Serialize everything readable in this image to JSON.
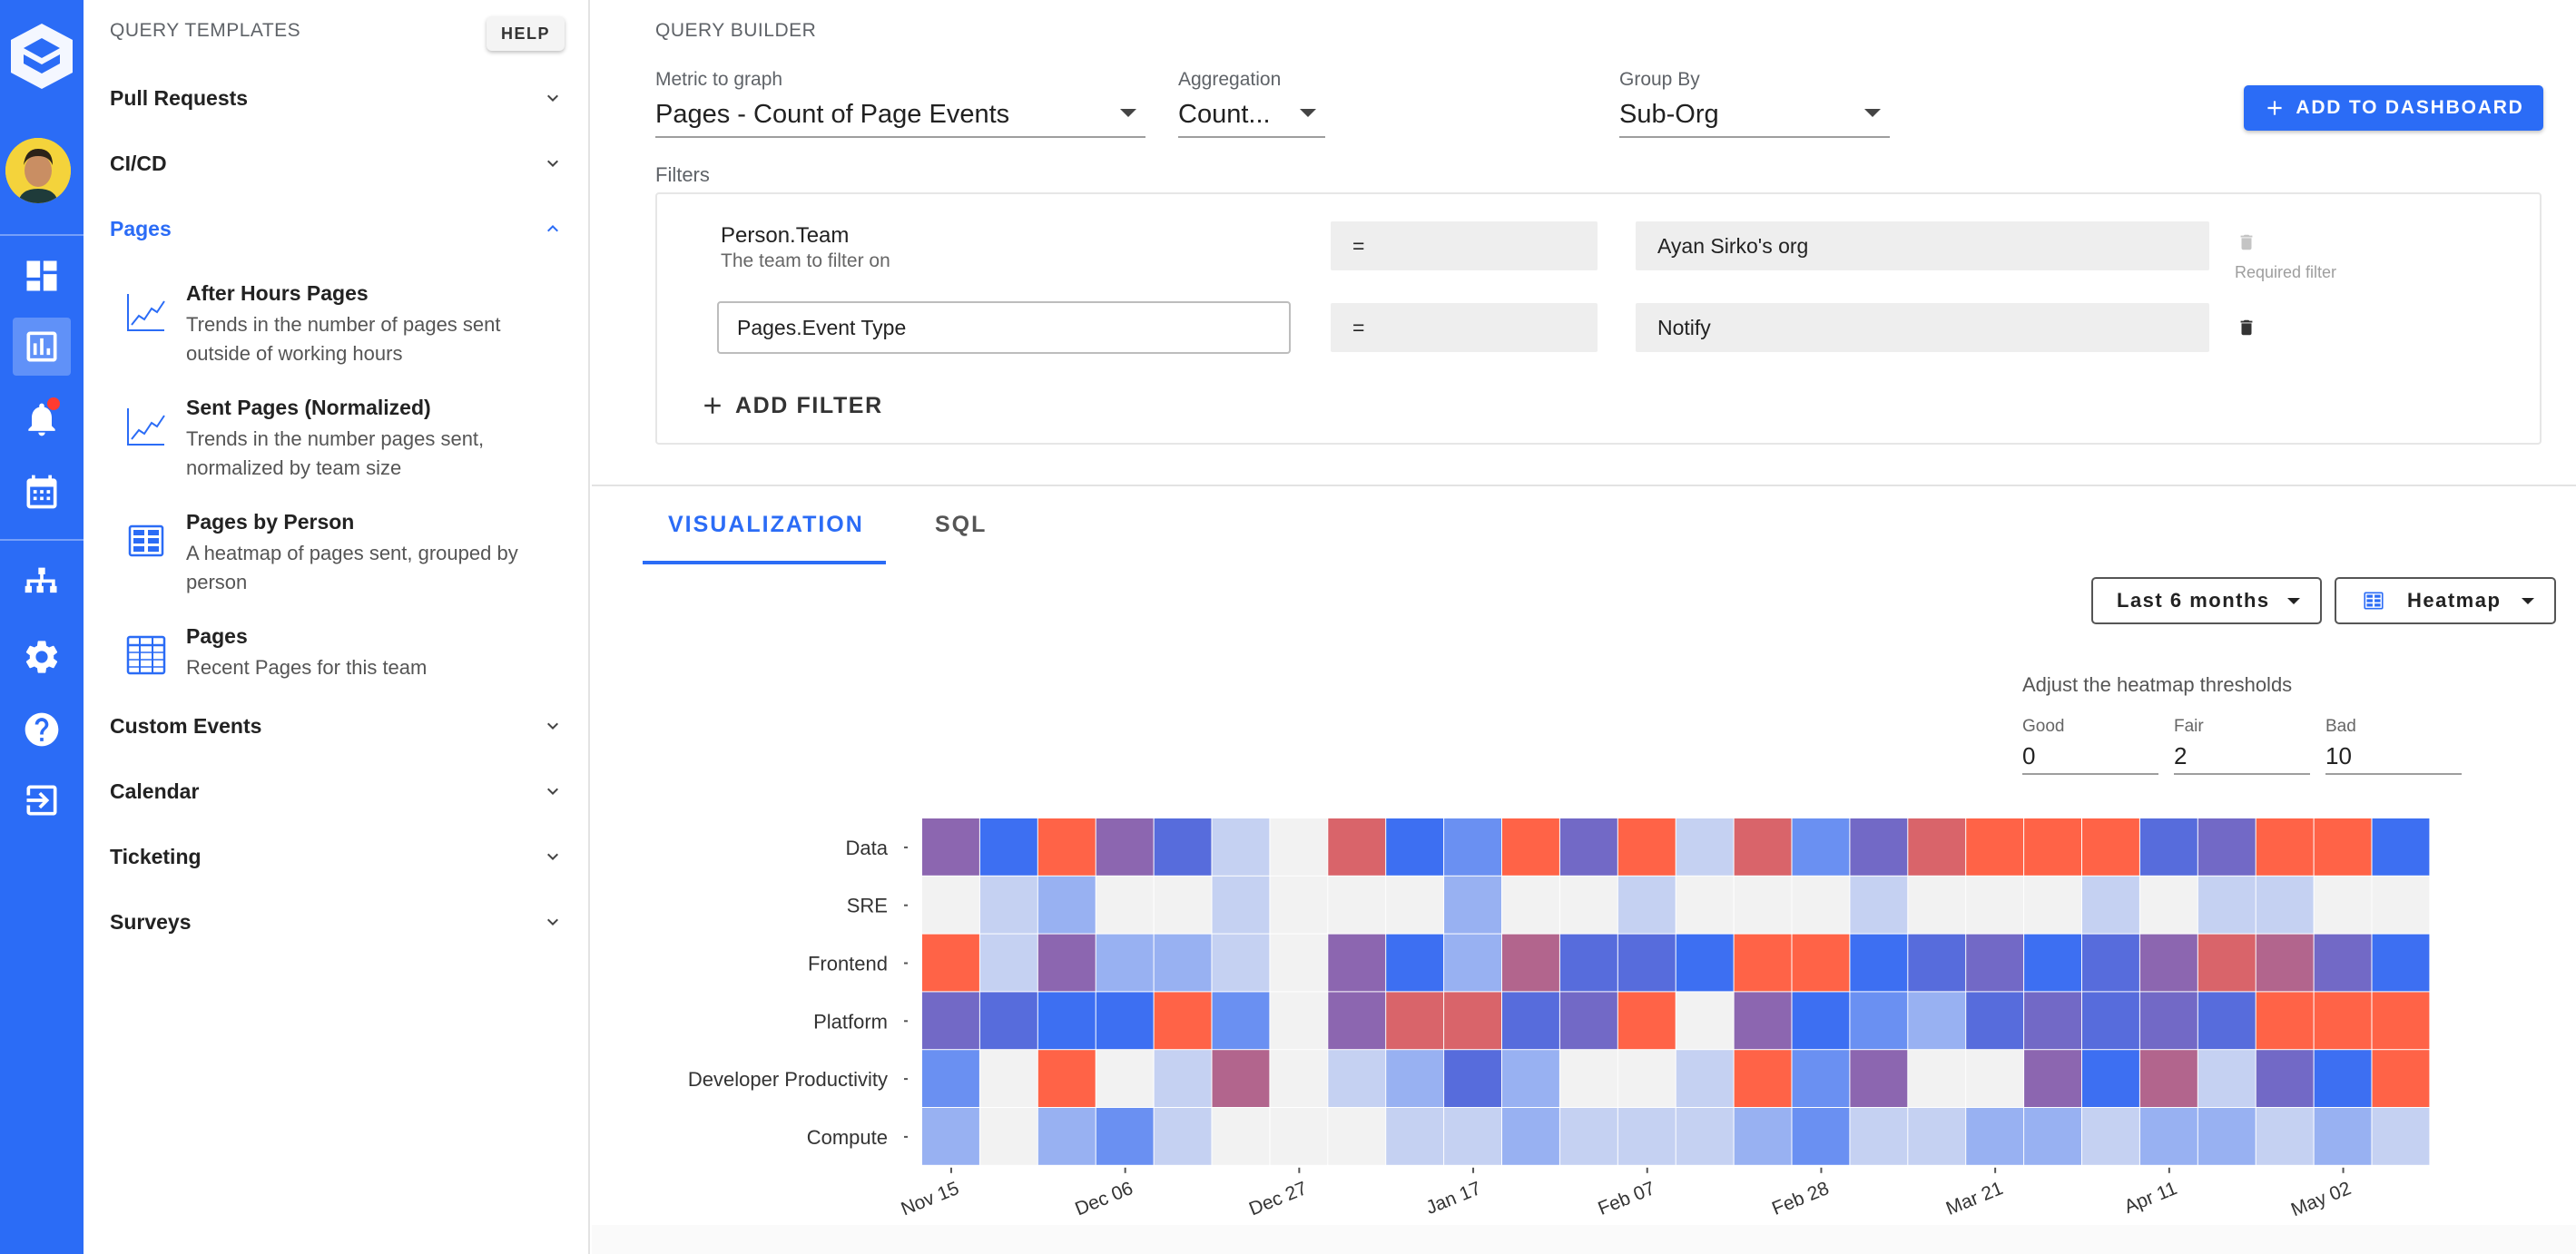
{
  "sidebar": {
    "header": "QUERY TEMPLATES",
    "help_label": "HELP",
    "sections": [
      {
        "label": "Pull Requests",
        "open": false
      },
      {
        "label": "CI/CD",
        "open": false
      },
      {
        "label": "Pages",
        "open": true
      },
      {
        "label": "Custom Events",
        "open": false
      },
      {
        "label": "Calendar",
        "open": false
      },
      {
        "label": "Ticketing",
        "open": false
      },
      {
        "label": "Surveys",
        "open": false
      }
    ],
    "templates": [
      {
        "title": "After Hours Pages",
        "description": "Trends in the number of pages sent outside of working hours",
        "icon": "line-chart-icon"
      },
      {
        "title": "Sent Pages (Normalized)",
        "description": "Trends in the number pages sent, normalized by team size",
        "icon": "line-chart-icon"
      },
      {
        "title": "Pages by Person",
        "description": "A heatmap of pages sent, grouped by person",
        "icon": "heatmap-icon"
      },
      {
        "title": "Pages",
        "description": "Recent Pages for this team",
        "icon": "table-icon"
      }
    ]
  },
  "rail": {
    "icons": [
      "logo-icon",
      "avatar",
      "dashboard-icon",
      "analytics-icon",
      "bell-icon",
      "calendar-icon",
      "org-chart-icon",
      "settings-icon",
      "help-icon",
      "logout-icon"
    ],
    "accent": "#2b6cf6"
  },
  "query": {
    "title": "QUERY BUILDER",
    "metric": {
      "caption": "Metric to graph",
      "value": "Pages - Count of Page Events"
    },
    "aggregation": {
      "caption": "Aggregation",
      "value": "Count..."
    },
    "group_by": {
      "caption": "Group By",
      "value": "Sub-Org"
    },
    "add_to_dashboard": "ADD TO DASHBOARD"
  },
  "filters": {
    "label": "Filters",
    "rows": [
      {
        "field": "Person.Team",
        "hint": "The team to filter on",
        "operator": "=",
        "value": "Ayan Sirko's org",
        "note": "Required filter"
      },
      {
        "field": "Pages.Event Type",
        "operator": "=",
        "value": "Notify"
      }
    ],
    "add_label": "ADD FILTER"
  },
  "tabs": [
    {
      "label": "VISUALIZATION",
      "active": true
    },
    {
      "label": "SQL",
      "active": false
    }
  ],
  "controls": {
    "range": "Last 6 months",
    "chart_type": "Heatmap"
  },
  "thresholds": {
    "title": "Adjust the heatmap thresholds",
    "good": {
      "caption": "Good",
      "value": "0"
    },
    "fair": {
      "caption": "Fair",
      "value": "2"
    },
    "bad": {
      "caption": "Bad",
      "value": "10"
    }
  },
  "chart_data": {
    "type": "heatmap",
    "rows": [
      "Data",
      "SRE",
      "Frontend",
      "Platform",
      "Developer Productivity",
      "Compute"
    ],
    "x_tick_labels": [
      "Nov 15",
      "Dec 06",
      "Dec 27",
      "Jan 17",
      "Feb 07",
      "Feb 28",
      "Mar 21",
      "Apr 11",
      "May 02"
    ],
    "colors": {
      "low": "#f2f2f2",
      "mid_blue": "#3d6ff2",
      "purple": "#8c66b0",
      "high": "#ff6347"
    },
    "values": [
      [
        7,
        4,
        10,
        7,
        5,
        1,
        0,
        9,
        4,
        3,
        10,
        6,
        10,
        1,
        9,
        3,
        6,
        9,
        10,
        10,
        10,
        5,
        6,
        10,
        10,
        4
      ],
      [
        0,
        1,
        2,
        0,
        0,
        1,
        0,
        0,
        0,
        2,
        0,
        0,
        1,
        0,
        0,
        0,
        1,
        0,
        0,
        0,
        1,
        0,
        1,
        1,
        0,
        0
      ],
      [
        10,
        1,
        7,
        2,
        2,
        1,
        0,
        7,
        4,
        2,
        8,
        5,
        5,
        4,
        10,
        10,
        4,
        5,
        6,
        4,
        5,
        7,
        9,
        8,
        6,
        4
      ],
      [
        6,
        5,
        4,
        4,
        10,
        3,
        0,
        7,
        9,
        9,
        5,
        6,
        10,
        0,
        7,
        4,
        3,
        2,
        5,
        6,
        5,
        6,
        5,
        10,
        10,
        10
      ],
      [
        3,
        0,
        10,
        0,
        1,
        8,
        0,
        1,
        2,
        5,
        2,
        0,
        0,
        1,
        10,
        3,
        7,
        0,
        0,
        7,
        4,
        8,
        1,
        6,
        4,
        10
      ],
      [
        2,
        0,
        2,
        3,
        1,
        0,
        0,
        0,
        1,
        1,
        2,
        1,
        1,
        1,
        2,
        3,
        1,
        1,
        2,
        2,
        1,
        2,
        2,
        1,
        2,
        1
      ]
    ],
    "thresholds": {
      "good": 0,
      "fair": 2,
      "bad": 10
    }
  }
}
